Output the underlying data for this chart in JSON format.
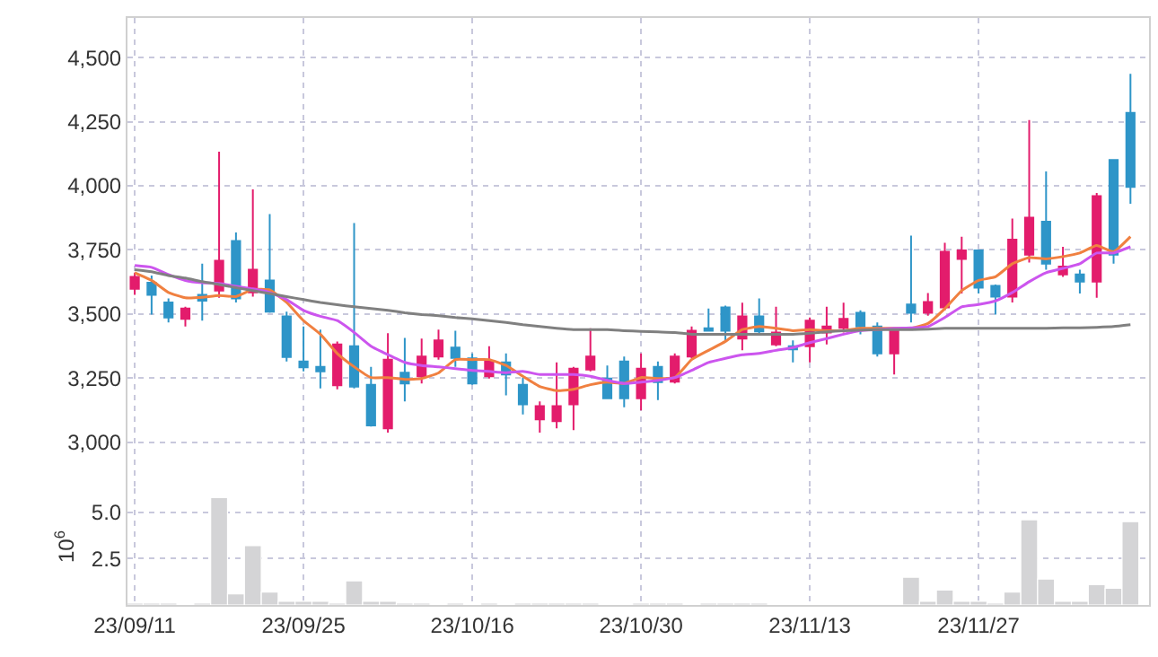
{
  "chart_data": [
    {
      "type": "candlestick",
      "ohlc": [
        [
          3598,
          3661,
          3575,
          3645
        ],
        [
          3622,
          3650,
          3498,
          3575
        ],
        [
          3545,
          3561,
          3467,
          3486
        ],
        [
          3481,
          3528,
          3451,
          3521
        ],
        [
          3575,
          3696,
          3474,
          3552
        ],
        [
          3591,
          4133,
          3563,
          3708
        ],
        [
          3785,
          3818,
          3545,
          3561
        ],
        [
          3584,
          3986,
          3568,
          3673
        ],
        [
          3631,
          3890,
          3505,
          3509
        ],
        [
          3491,
          3509,
          3315,
          3332
        ],
        [
          3315,
          3451,
          3276,
          3292
        ],
        [
          3294,
          3439,
          3210,
          3276
        ],
        [
          3222,
          3393,
          3206,
          3381
        ],
        [
          3374,
          3855,
          3210,
          3217
        ],
        [
          3224,
          3294,
          3061,
          3065
        ],
        [
          3054,
          3425,
          3037,
          3322
        ],
        [
          3271,
          3407,
          3159,
          3229
        ],
        [
          3257,
          3404,
          3229,
          3334
        ],
        [
          3334,
          3439,
          3322,
          3397
        ],
        [
          3369,
          3435,
          3294,
          3329
        ],
        [
          3327,
          3346,
          3224,
          3229
        ],
        [
          3257,
          3374,
          3248,
          3315
        ],
        [
          3311,
          3346,
          3182,
          3264
        ],
        [
          3224,
          3252,
          3108,
          3147
        ],
        [
          3089,
          3159,
          3037,
          3140
        ],
        [
          3082,
          3311,
          3054,
          3140
        ],
        [
          3147,
          3294,
          3047,
          3287
        ],
        [
          3283,
          3444,
          3276,
          3334
        ],
        [
          3248,
          3299,
          3171,
          3171
        ],
        [
          3315,
          3334,
          3136,
          3171
        ],
        [
          3171,
          3346,
          3124,
          3287
        ],
        [
          3294,
          3315,
          3164,
          3234
        ],
        [
          3236,
          3346,
          3229,
          3334
        ],
        [
          3334,
          3451,
          3327,
          3435
        ],
        [
          3444,
          3521,
          3435,
          3435
        ],
        [
          3526,
          3533,
          3393,
          3435
        ],
        [
          3404,
          3544,
          3358,
          3491
        ],
        [
          3491,
          3561,
          3421,
          3432
        ],
        [
          3381,
          3528,
          3374,
          3428
        ],
        [
          3374,
          3397,
          3311,
          3362
        ],
        [
          3374,
          3486,
          3311,
          3474
        ],
        [
          3428,
          3528,
          3381,
          3451
        ],
        [
          3446,
          3544,
          3428,
          3481
        ],
        [
          3505,
          3514,
          3421,
          3451
        ],
        [
          3451,
          3467,
          3334,
          3346
        ],
        [
          3346,
          3444,
          3264,
          3439
        ],
        [
          3537,
          3806,
          3467,
          3505
        ],
        [
          3505,
          3582,
          3493,
          3547
        ],
        [
          3526,
          3778,
          3514,
          3743
        ],
        [
          3715,
          3801,
          3580,
          3748
        ],
        [
          3748,
          3748,
          3580,
          3603
        ],
        [
          3610,
          3615,
          3498,
          3568
        ],
        [
          3568,
          3872,
          3545,
          3790
        ],
        [
          3731,
          4257,
          3701,
          3876
        ],
        [
          3860,
          4056,
          3673,
          3696
        ],
        [
          3654,
          3762,
          3645,
          3685
        ],
        [
          3654,
          3673,
          3580,
          3626
        ],
        [
          3626,
          3972,
          3563,
          3960
        ],
        [
          4101,
          4101,
          3696,
          3731
        ],
        [
          4285,
          4437,
          3930,
          3996
        ]
      ],
      "colors": [
        "#e31c6c",
        "#2e95c8",
        "#2e95c8",
        "#e31c6c",
        "#2e95c8",
        "#e31c6c",
        "#2e95c8",
        "#e31c6c",
        "#2e95c8",
        "#2e95c8",
        "#2e95c8",
        "#2e95c8",
        "#e31c6c",
        "#2e95c8",
        "#2e95c8",
        "#e31c6c",
        "#2e95c8",
        "#e31c6c",
        "#e31c6c",
        "#2e95c8",
        "#2e95c8",
        "#e31c6c",
        "#2e95c8",
        "#2e95c8",
        "#e31c6c",
        "#e31c6c",
        "#e31c6c",
        "#e31c6c",
        "#2e95c8",
        "#2e95c8",
        "#e31c6c",
        "#2e95c8",
        "#e31c6c",
        "#e31c6c",
        "#2e95c8",
        "#2e95c8",
        "#e31c6c",
        "#2e95c8",
        "#e31c6c",
        "#2e95c8",
        "#e31c6c",
        "#e31c6c",
        "#e31c6c",
        "#2e95c8",
        "#2e95c8",
        "#e31c6c",
        "#2e95c8",
        "#e31c6c",
        "#e31c6c",
        "#e31c6c",
        "#2e95c8",
        "#2e95c8",
        "#e31c6c",
        "#e31c6c",
        "#2e95c8",
        "#e31c6c",
        "#2e95c8",
        "#e31c6c",
        "#2e95c8",
        "#2e95c8"
      ],
      "series": [
        {
          "type": "line",
          "color": "#f08040",
          "values": [
            3661,
            3631,
            3584,
            3563,
            3565,
            3572,
            3568,
            3596,
            3594,
            3545,
            3474,
            3421,
            3346,
            3294,
            3252,
            3252,
            3245,
            3248,
            3270,
            3322,
            3322,
            3322,
            3299,
            3257,
            3217,
            3201,
            3206,
            3224,
            3234,
            3229,
            3252,
            3248,
            3252,
            3322,
            3358,
            3393,
            3439,
            3451,
            3444,
            3435,
            3439,
            3435,
            3435,
            3444,
            3444,
            3444,
            3444,
            3463,
            3521,
            3591,
            3631,
            3645,
            3696,
            3720,
            3715,
            3724,
            3738,
            3767,
            3743,
            3802
          ]
        },
        {
          "type": "line",
          "color": "#cc55ee",
          "values": [
            3689,
            3682,
            3654,
            3631,
            3622,
            3619,
            3608,
            3598,
            3584,
            3556,
            3514,
            3491,
            3474,
            3428,
            3374,
            3341,
            3311,
            3299,
            3294,
            3287,
            3280,
            3276,
            3271,
            3276,
            3264,
            3264,
            3264,
            3257,
            3241,
            3229,
            3234,
            3241,
            3252,
            3280,
            3311,
            3327,
            3341,
            3346,
            3358,
            3369,
            3388,
            3404,
            3421,
            3435,
            3439,
            3444,
            3446,
            3451,
            3486,
            3528,
            3537,
            3551,
            3584,
            3626,
            3661,
            3678,
            3696,
            3738,
            3738,
            3762
          ]
        },
        {
          "type": "line",
          "color": "#808080",
          "values": [
            3673,
            3665,
            3650,
            3640,
            3626,
            3615,
            3603,
            3591,
            3580,
            3568,
            3556,
            3545,
            3536,
            3528,
            3521,
            3514,
            3505,
            3498,
            3493,
            3486,
            3481,
            3474,
            3467,
            3458,
            3451,
            3444,
            3439,
            3439,
            3439,
            3435,
            3432,
            3430,
            3428,
            3421,
            3421,
            3421,
            3421,
            3421,
            3421,
            3421,
            3425,
            3430,
            3435,
            3437,
            3439,
            3439,
            3439,
            3441,
            3444,
            3444,
            3444,
            3444,
            3444,
            3444,
            3444,
            3446,
            3446,
            3448,
            3451,
            3458
          ]
        }
      ],
      "ylim": [
        2820,
        4655
      ],
      "yticks": [
        {
          "value": 3000,
          "label": "3,000"
        },
        {
          "value": 3250,
          "label": "3,250"
        },
        {
          "value": 3500,
          "label": "3,500"
        },
        {
          "value": 3750,
          "label": "3,750"
        },
        {
          "value": 4000,
          "label": "4,000"
        },
        {
          "value": 4250,
          "label": "4,250"
        },
        {
          "value": 4500,
          "label": "4,500"
        }
      ],
      "grid": true,
      "tick_labels": "y"
    },
    {
      "type": "bar",
      "categories": [
        "23/09/11",
        null,
        null,
        null,
        null,
        null,
        null,
        null,
        null,
        null,
        "23/09/25",
        null,
        null,
        null,
        null,
        null,
        null,
        null,
        null,
        null,
        "23/10/16",
        null,
        null,
        null,
        null,
        null,
        null,
        null,
        null,
        null,
        "23/10/30",
        null,
        null,
        null,
        null,
        null,
        null,
        null,
        null,
        null,
        "23/11/13",
        null,
        null,
        null,
        null,
        null,
        null,
        null,
        null,
        null,
        "23/11/27",
        null,
        null,
        null,
        null,
        null,
        null,
        null,
        null,
        null
      ],
      "values": [
        0.1,
        0.1,
        0.1,
        0,
        0.1,
        5.8,
        0.6,
        3.2,
        0.7,
        0.2,
        0.2,
        0.2,
        0.1,
        1.3,
        0.2,
        0.2,
        0.1,
        0.1,
        0,
        0.1,
        0,
        0.1,
        0,
        0.1,
        0.1,
        0.1,
        0.1,
        0.1,
        0,
        0,
        0.1,
        0.1,
        0.1,
        0,
        0.1,
        0.1,
        0.1,
        0.1,
        0,
        0,
        0,
        0,
        0,
        0,
        0,
        0,
        1.5,
        0.2,
        0.8,
        0.2,
        0.2,
        0.1,
        0.7,
        4.6,
        1.4,
        0.2,
        0.2,
        1.1,
        0.9,
        4.5
      ],
      "color": "#d4d4d6",
      "ylabel": "10$^{6}$",
      "ylim": [
        0,
        6.3
      ],
      "yticks": [
        {
          "value": 2.5,
          "label": "2.5"
        },
        {
          "value": 5,
          "label": "5.0"
        }
      ],
      "grid": true
    }
  ]
}
